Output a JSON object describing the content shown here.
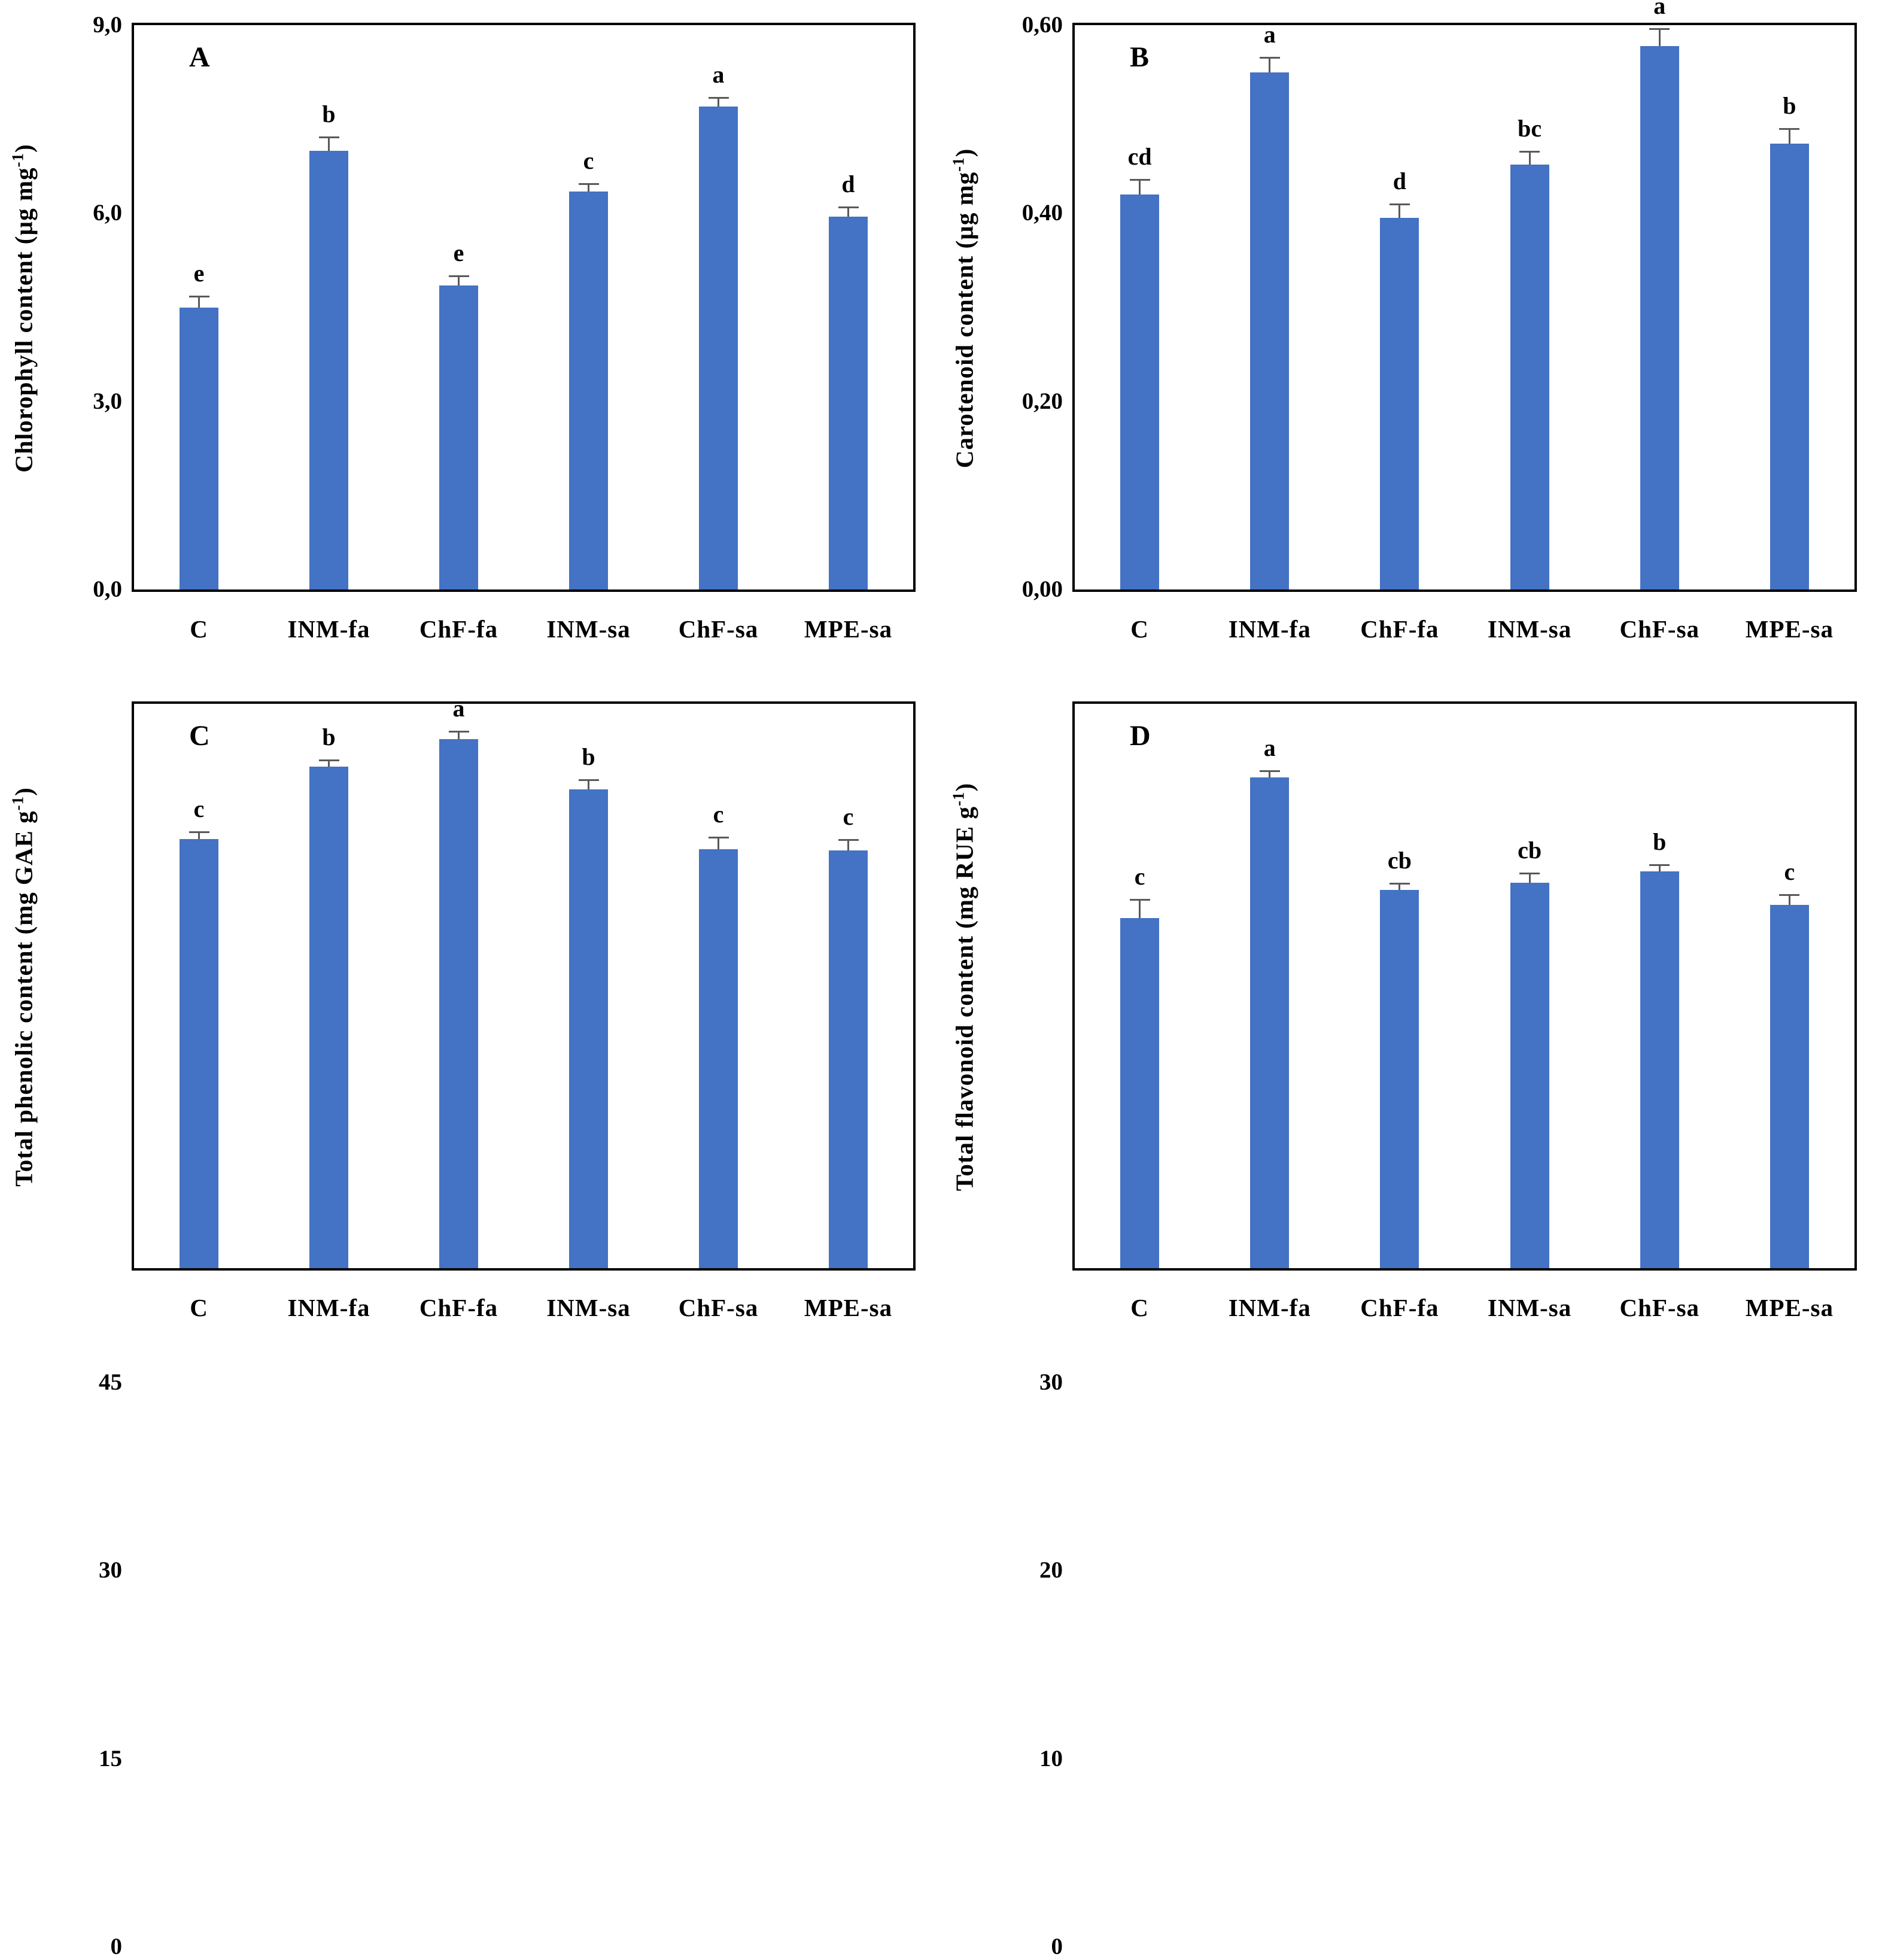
{
  "figure": {
    "background": "#ffffff",
    "bar_color": "#4472C4",
    "error_bar_color": "#595959",
    "axis_color": "#000000",
    "categories": [
      "C",
      "INM-fa",
      "ChF-fa",
      "INM-sa",
      "ChF-sa",
      "MPE-sa"
    ]
  },
  "chart_data": [
    {
      "type": "bar",
      "panel": "A",
      "ylabel": {
        "pre": "Chlorophyll content (µg mg",
        "sup": "-1",
        "post": ")"
      },
      "categories": [
        "C",
        "INM-fa",
        "ChF-fa",
        "INM-sa",
        "ChF-sa",
        "MPE-sa"
      ],
      "values": [
        4.5,
        7.0,
        4.85,
        6.35,
        7.7,
        5.95
      ],
      "errors": [
        0.18,
        0.22,
        0.15,
        0.12,
        0.15,
        0.15
      ],
      "letters": [
        "e",
        "b",
        "e",
        "c",
        "a",
        "d"
      ],
      "ylim": [
        0,
        9
      ],
      "yticks": [
        "0,0",
        "3,0",
        "6,0",
        "9,0"
      ],
      "ytick_values": [
        0,
        3,
        6,
        9
      ],
      "grid": false,
      "legend": "none"
    },
    {
      "type": "bar",
      "panel": "B",
      "ylabel": {
        "pre": "Carotenoid content (µg mg",
        "sup": "-1",
        "post": ")"
      },
      "categories": [
        "C",
        "INM-fa",
        "ChF-fa",
        "INM-sa",
        "ChF-sa",
        "MPE-sa"
      ],
      "values": [
        0.42,
        0.55,
        0.395,
        0.452,
        0.578,
        0.474
      ],
      "errors": [
        0.016,
        0.016,
        0.015,
        0.014,
        0.018,
        0.016
      ],
      "letters": [
        "cd",
        "a",
        "d",
        "bc",
        "a",
        "b"
      ],
      "ylim": [
        0,
        0.6
      ],
      "yticks": [
        "0,00",
        "0,20",
        "0,40",
        "0,60"
      ],
      "ytick_values": [
        0,
        0.2,
        0.4,
        0.6
      ],
      "grid": false,
      "legend": "none"
    },
    {
      "type": "bar",
      "panel": "C",
      "ylabel": {
        "pre": "Total phenolic content (mg GAE g",
        "sup": "-1",
        "post": ")"
      },
      "categories": [
        "C",
        "INM-fa",
        "ChF-fa",
        "INM-sa",
        "ChF-sa",
        "MPE-sa"
      ],
      "values": [
        34.2,
        40.0,
        42.2,
        38.2,
        33.4,
        33.3
      ],
      "errors": [
        0.6,
        0.5,
        0.6,
        0.75,
        0.95,
        0.85
      ],
      "letters": [
        "c",
        "b",
        "a",
        "b",
        "c",
        "c"
      ],
      "ylim": [
        0,
        45
      ],
      "yticks": [
        "0",
        "15",
        "30",
        "45"
      ],
      "ytick_values": [
        0,
        15,
        30,
        45
      ],
      "grid": false,
      "legend": "none"
    },
    {
      "type": "bar",
      "panel": "D",
      "ylabel": {
        "pre": "Total flavonoid content (mg RUE g",
        "sup": "-1",
        "post": ")"
      },
      "categories": [
        "C",
        "INM-fa",
        "ChF-fa",
        "INM-sa",
        "ChF-sa",
        "MPE-sa"
      ],
      "values": [
        18.6,
        26.1,
        20.1,
        20.5,
        21.1,
        19.3
      ],
      "errors": [
        1.0,
        0.35,
        0.35,
        0.5,
        0.35,
        0.55
      ],
      "letters": [
        "c",
        "a",
        "cb",
        "cb",
        "b",
        "c"
      ],
      "ylim": [
        0,
        30
      ],
      "yticks": [
        "0",
        "10",
        "20",
        "30"
      ],
      "ytick_values": [
        0,
        10,
        20,
        30
      ],
      "grid": false,
      "legend": "none"
    }
  ]
}
